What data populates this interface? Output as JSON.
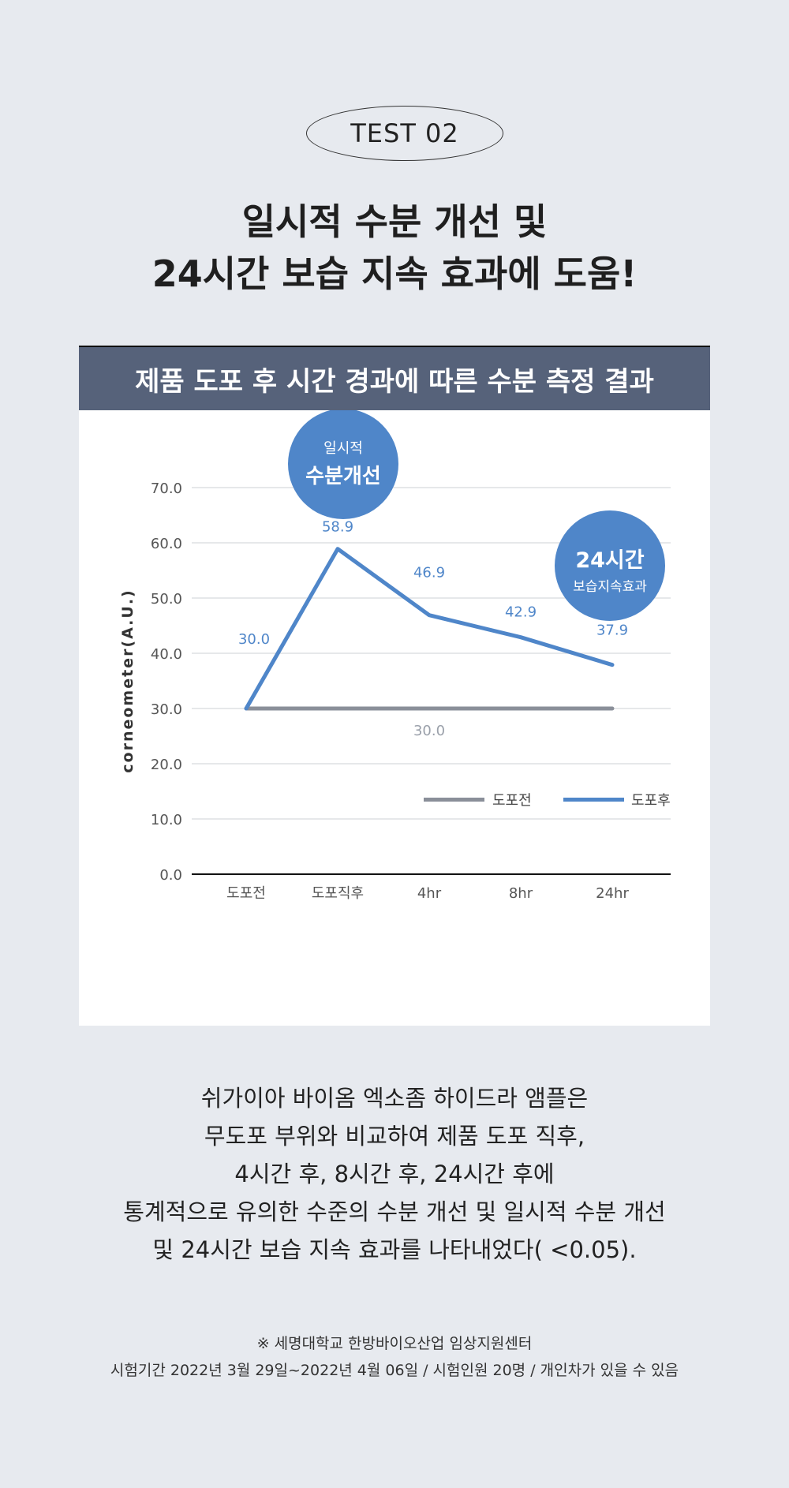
{
  "badge": "TEST 02",
  "headline": [
    "일시적 수분 개선 및",
    "24시간 보습 지속 효과에 도움!"
  ],
  "chart_data": {
    "type": "line",
    "title": "제품 도포 후 시간 경과에 따른 수분 측정 결과",
    "ylabel": "corneometer(A.U.)",
    "xlabel": "",
    "categories": [
      "도포전",
      "도포직후",
      "4hr",
      "8hr",
      "24hr"
    ],
    "ylim": [
      0,
      70
    ],
    "yticks": [
      "0.0",
      "10.0",
      "20.0",
      "30.0",
      "40.0",
      "50.0",
      "60.0",
      "70.0"
    ],
    "series": [
      {
        "name": "도포전",
        "color": "#8a8f99",
        "values": [
          30.0,
          30.0,
          30.0,
          30.0,
          30.0
        ],
        "labels": {
          "2": "30.0"
        }
      },
      {
        "name": "도포후",
        "color": "#4f86c9",
        "values": [
          30.0,
          58.9,
          46.9,
          42.9,
          37.9
        ],
        "labels": {
          "0": "30.0",
          "1": "58.9",
          "2": "46.9",
          "3": "42.9",
          "4": "37.9"
        }
      }
    ],
    "legend_position": "bottom-right",
    "grid": true,
    "callouts": [
      {
        "small": "일시적",
        "big": "수분개선"
      },
      {
        "big": "24시간",
        "small": "보습지속효과"
      }
    ]
  },
  "description": [
    "쉬가이아 바이옴 엑소좀 하이드라 앰플은",
    "무도포 부위와 비교하여 제품 도포 직후,",
    "4시간 후, 8시간 후, 24시간 후에",
    "통계적으로 유의한 수준의 수분 개선 및 일시적 수분 개선",
    "및 24시간 보습 지속 효과를 나타내었다( <0.05)."
  ],
  "notes": [
    "※ 세명대학교 한방바이오산업 임상지원센터",
    "시험기간 2022년 3월 29일~2022년 4월 06일 / 시험인원 20명 / 개인차가 있을 수 있음"
  ]
}
